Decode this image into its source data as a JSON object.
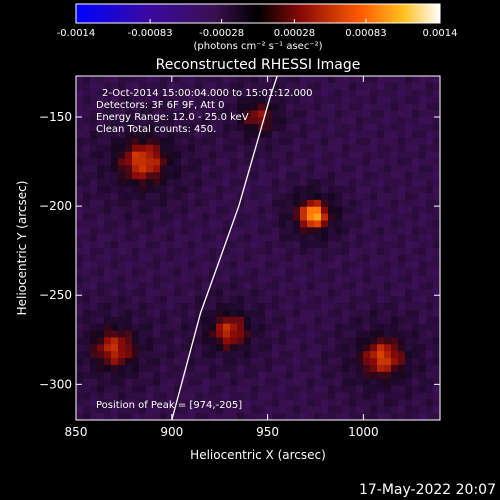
{
  "colorbar": {
    "ticks": [
      "-0.0014",
      "-0.00083",
      "-0.00028",
      "0.00028",
      "0.00083",
      "0.0014"
    ],
    "min": -0.0014,
    "max": 0.0014,
    "unit_label": "(photons cm⁻² s⁻¹ asec⁻²)"
  },
  "chart_data": {
    "type": "heatmap",
    "title": "Reconstructed RHESSI Image",
    "xlabel": "Heliocentric X (arcsec)",
    "ylabel": "Heliocentric Y (arcsec)",
    "xlim": [
      850,
      1040
    ],
    "ylim": [
      -320,
      -127
    ],
    "x_ticks": [
      850,
      900,
      950,
      1000
    ],
    "y_ticks": [
      -150,
      -200,
      -250,
      -300
    ],
    "grid": false,
    "info_lines": [
      "2-Oct-2014 15:00:04.000 to 15:01:12.000",
      "Detectors: 3F 6F 9F, Att 0",
      "Energy Range: 12.0 - 25.0 keV",
      "Clean     Total counts: 450."
    ],
    "peak_label": "Position of Peak = [974,-205]",
    "peak": [
      974,
      -205
    ],
    "limb_curve": [
      [
        900,
        -320
      ],
      [
        905,
        -300
      ],
      [
        915,
        -260
      ],
      [
        925,
        -230
      ],
      [
        935,
        -200
      ],
      [
        943,
        -170
      ],
      [
        951,
        -140
      ],
      [
        955,
        -127
      ]
    ],
    "sources": [
      {
        "x": 974,
        "y": -205,
        "peak": 0.0014,
        "width": 12
      },
      {
        "x": 885,
        "y": -175,
        "peak": 0.0009,
        "width": 20
      },
      {
        "x": 870,
        "y": -280,
        "peak": 0.0008,
        "width": 18
      },
      {
        "x": 930,
        "y": -270,
        "peak": 0.0008,
        "width": 16
      },
      {
        "x": 1010,
        "y": -285,
        "peak": 0.0009,
        "width": 18
      },
      {
        "x": 945,
        "y": -150,
        "peak": 0.0006,
        "width": 15
      }
    ]
  },
  "timestamp": "17-May-2022 20:07"
}
